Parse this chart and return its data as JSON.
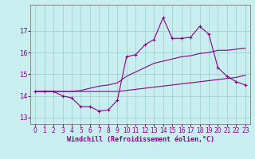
{
  "x": [
    0,
    1,
    2,
    3,
    4,
    5,
    6,
    7,
    8,
    9,
    10,
    11,
    12,
    13,
    14,
    15,
    16,
    17,
    18,
    19,
    20,
    21,
    22,
    23
  ],
  "line1_jagged": [
    14.2,
    14.2,
    14.2,
    14.0,
    13.9,
    13.5,
    13.5,
    13.3,
    13.35,
    13.8,
    15.8,
    15.9,
    16.35,
    16.6,
    17.6,
    16.65,
    16.65,
    16.7,
    17.2,
    16.85,
    15.3,
    14.9,
    14.65,
    14.5
  ],
  "line2_upper": [
    14.2,
    14.2,
    14.2,
    14.2,
    14.2,
    14.25,
    14.35,
    14.45,
    14.5,
    14.6,
    14.9,
    15.1,
    15.3,
    15.5,
    15.6,
    15.7,
    15.8,
    15.85,
    15.95,
    16.0,
    16.1,
    16.1,
    16.15,
    16.2
  ],
  "line3_flat": [
    14.2,
    14.2,
    14.2,
    14.2,
    14.2,
    14.2,
    14.2,
    14.2,
    14.2,
    14.2,
    14.25,
    14.3,
    14.35,
    14.4,
    14.45,
    14.5,
    14.55,
    14.6,
    14.65,
    14.7,
    14.75,
    14.8,
    14.85,
    14.95
  ],
  "bg_color": "#c8eef0",
  "line_color": "#880088",
  "grid_color": "#99cccc",
  "ylim": [
    12.7,
    18.2
  ],
  "xlim": [
    -0.5,
    23.5
  ],
  "yticks": [
    13,
    14,
    15,
    16,
    17
  ],
  "xticks": [
    0,
    1,
    2,
    3,
    4,
    5,
    6,
    7,
    8,
    9,
    10,
    11,
    12,
    13,
    14,
    15,
    16,
    17,
    18,
    19,
    20,
    21,
    22,
    23
  ],
  "xlabel": "Windchill (Refroidissement éolien,°C)"
}
